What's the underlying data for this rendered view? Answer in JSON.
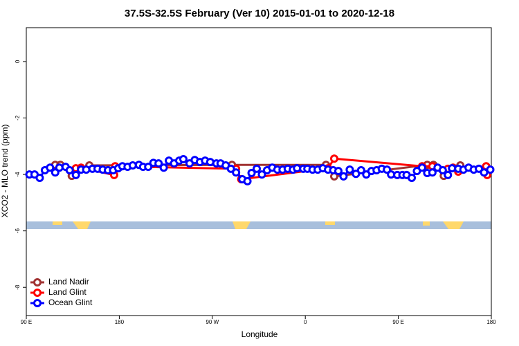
{
  "chart_data": {
    "type": "line",
    "title": "37.5S-32.5S February (Ver 10)   2015-01-01 to 2020-12-18",
    "x_label": "Longitude",
    "y_label": "XCO2 - MLO trend (ppm)",
    "xlim": [
      90,
      540
    ],
    "ylim": [
      -9,
      1.2
    ],
    "xticks": [
      {
        "value": 90,
        "label": "90 E"
      },
      180,
      {
        "value": 270,
        "label": "90 W"
      },
      {
        "value": 360,
        "label": "0"
      },
      {
        "value": 450,
        "label": "90 E"
      },
      {
        "value": 540,
        "label": "180"
      }
    ],
    "yticks": [
      0,
      -2,
      -4,
      -6,
      -8
    ],
    "legend_position": "bottom-left",
    "series": [
      {
        "name": "Land Nadir",
        "color": "#a03232",
        "x": [
          118,
          123,
          134,
          151,
          289,
          380,
          388,
          478,
          484,
          494,
          510
        ],
        "values": [
          -3.66,
          -3.66,
          -4.05,
          -3.68,
          -3.66,
          -3.66,
          -4.07,
          -3.66,
          -3.66,
          -4.05,
          -3.68
        ]
      },
      {
        "name": "Land Glint",
        "color": "#ff0000",
        "x": [
          138,
          143,
          175,
          176,
          293,
          298,
          382,
          388,
          473,
          483,
          498,
          503,
          508,
          535,
          536
        ],
        "values": [
          -3.78,
          -3.76,
          -4.02,
          -3.71,
          -3.8,
          -4.17,
          -3.78,
          -3.44,
          -3.71,
          -3.71,
          -3.8,
          -3.76,
          -3.9,
          -3.71,
          -4.02
        ]
      },
      {
        "name": "Ocean Glint",
        "color": "#0000ff",
        "x": [
          93,
          98,
          103,
          108,
          113,
          118,
          122,
          128,
          132,
          138,
          143,
          148,
          154,
          159,
          164,
          169,
          174,
          179,
          183,
          188,
          193,
          199,
          203,
          208,
          213,
          218,
          223,
          228,
          233,
          238,
          242,
          248,
          253,
          258,
          263,
          268,
          274,
          278,
          283,
          288,
          293,
          299,
          304,
          308,
          313,
          318,
          323,
          328,
          333,
          338,
          343,
          348,
          352,
          358,
          362,
          367,
          372,
          377,
          382,
          387,
          392,
          397,
          403,
          409,
          414,
          419,
          424,
          429,
          434,
          439,
          443,
          449,
          454,
          458,
          463,
          468,
          473,
          478,
          483,
          488,
          493,
          498,
          502,
          508,
          513,
          518,
          523,
          528,
          533,
          539
        ],
        "values": [
          -4.0,
          -4.0,
          -4.12,
          -3.85,
          -3.76,
          -3.93,
          -3.76,
          -3.73,
          -3.85,
          -4.02,
          -3.83,
          -3.83,
          -3.8,
          -3.8,
          -3.83,
          -3.85,
          -3.85,
          -3.78,
          -3.71,
          -3.73,
          -3.68,
          -3.66,
          -3.73,
          -3.73,
          -3.59,
          -3.61,
          -3.76,
          -3.51,
          -3.61,
          -3.51,
          -3.46,
          -3.61,
          -3.49,
          -3.56,
          -3.51,
          -3.56,
          -3.61,
          -3.61,
          -3.68,
          -3.8,
          -3.93,
          -4.17,
          -4.24,
          -3.95,
          -3.8,
          -4.0,
          -3.85,
          -3.76,
          -3.83,
          -3.83,
          -3.8,
          -3.83,
          -3.78,
          -3.8,
          -3.8,
          -3.83,
          -3.83,
          -3.78,
          -3.83,
          -3.85,
          -3.88,
          -4.07,
          -3.83,
          -3.98,
          -3.85,
          -4.0,
          -3.88,
          -3.85,
          -3.8,
          -3.83,
          -4.0,
          -4.02,
          -4.02,
          -4.02,
          -4.12,
          -3.88,
          -3.76,
          -3.95,
          -3.93,
          -3.76,
          -3.85,
          -4.02,
          -3.78,
          -3.8,
          -3.83,
          -3.76,
          -3.83,
          -3.8,
          -3.93,
          -3.83
        ]
      }
    ]
  }
}
